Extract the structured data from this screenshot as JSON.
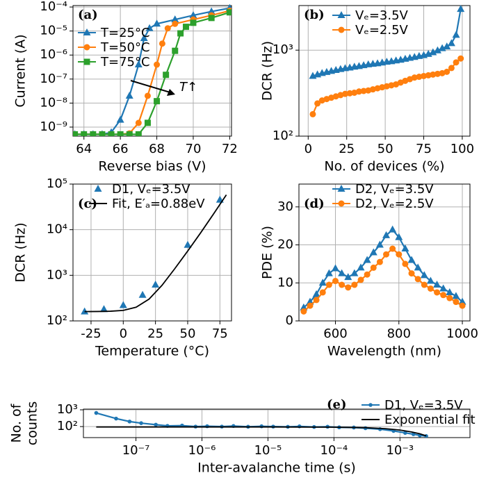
{
  "chart_data": [
    {
      "type": "line",
      "panel_label": "(a)",
      "xlabel": "Reverse bias (V)",
      "ylabel": "Current (A)",
      "annotation": "T↑",
      "xlim": [
        63.4,
        72.1
      ],
      "xticks": [
        64,
        66,
        68,
        70,
        72
      ],
      "yscale": "log",
      "ylim": [
        4.2e-10,
        0.000115
      ],
      "yticks": [
        {
          "value": 1e-09,
          "label": "10⁻⁹"
        },
        {
          "value": 1e-08,
          "label": "10⁻⁸"
        },
        {
          "value": 1e-07,
          "label": "10⁻⁷"
        },
        {
          "value": 1e-06,
          "label": "10⁻⁶"
        },
        {
          "value": 1e-05,
          "label": "10⁻⁵"
        },
        {
          "value": 0.0001,
          "label": "10⁻⁴"
        }
      ],
      "grid": true,
      "legend": "upper left",
      "series": [
        {
          "name": "T=25°C",
          "color": "#1f77b4",
          "marker": "triangle",
          "linestyle": "solid",
          "x": [
            63.5,
            64,
            64.5,
            65,
            65.5,
            66,
            66.5,
            67,
            67.3,
            67.6,
            68,
            69,
            70,
            71,
            72
          ],
          "values": [
            5e-10,
            5e-10,
            5e-10,
            5e-10,
            6e-10,
            2e-09,
            2e-08,
            4e-07,
            5e-06,
            1.3e-05,
            2e-05,
            3e-05,
            4.5e-05,
            6.5e-05,
            9e-05
          ]
        },
        {
          "name": "T=50°C",
          "color": "#ff7f0e",
          "marker": "circle",
          "linestyle": "solid",
          "x": [
            63.5,
            64,
            64.5,
            65,
            65.5,
            66,
            66.5,
            67,
            67.5,
            68,
            68.3,
            68.6,
            69,
            70,
            71,
            72
          ],
          "values": [
            5e-10,
            5e-10,
            5e-10,
            5e-10,
            5e-10,
            5e-10,
            5.5e-10,
            1.5e-09,
            2e-08,
            4e-07,
            3e-06,
            1.3e-05,
            2e-05,
            3e-05,
            4.5e-05,
            7e-05
          ]
        },
        {
          "name": "T=75°C",
          "color": "#2ca02c",
          "marker": "square",
          "linestyle": "solid",
          "x": [
            63.5,
            64,
            64.5,
            65,
            65.5,
            66,
            66.5,
            67,
            67.5,
            68,
            68.5,
            69,
            69.3,
            69.6,
            70,
            71,
            72
          ],
          "values": [
            5e-10,
            5e-10,
            5e-10,
            5e-10,
            5e-10,
            5e-10,
            5e-10,
            5e-10,
            1.5e-09,
            1.2e-08,
            1.5e-07,
            1.5e-06,
            8e-06,
            1.5e-05,
            2.2e-05,
            3.5e-05,
            6e-05
          ]
        }
      ]
    },
    {
      "type": "line",
      "panel_label": "(b)",
      "xlabel": "No. of devices (%)",
      "ylabel": "DCR (Hz)",
      "xlim": [
        -6,
        105
      ],
      "xticks": [
        0,
        25,
        50,
        75,
        100
      ],
      "yscale": "log",
      "ylim": [
        100,
        3300
      ],
      "yticks": [
        {
          "value": 100,
          "label": "10²"
        },
        {
          "value": 1000,
          "label": "10³"
        }
      ],
      "grid": true,
      "legend": "upper left",
      "x": [
        3,
        6,
        9,
        12,
        15,
        18,
        21,
        24,
        27,
        30,
        33,
        36,
        39,
        42,
        45,
        48,
        51,
        54,
        57,
        60,
        63,
        66,
        69,
        72,
        75,
        78,
        81,
        84,
        87,
        90,
        93,
        96,
        99
      ],
      "series": [
        {
          "name": "Vₑ=3.5V",
          "color": "#1f77b4",
          "marker": "triangle",
          "linestyle": "solid",
          "values": [
            500,
            520,
            540,
            555,
            570,
            585,
            600,
            615,
            625,
            640,
            650,
            665,
            680,
            690,
            700,
            715,
            730,
            740,
            755,
            770,
            790,
            810,
            830,
            850,
            870,
            900,
            940,
            990,
            1050,
            1100,
            1200,
            1500,
            3000
          ]
        },
        {
          "name": "Vₑ=2.5V",
          "color": "#ff7f0e",
          "marker": "circle",
          "linestyle": "solid",
          "values": [
            180,
            240,
            260,
            270,
            280,
            290,
            300,
            310,
            315,
            320,
            330,
            335,
            340,
            350,
            360,
            370,
            380,
            390,
            400,
            420,
            440,
            460,
            480,
            490,
            500,
            510,
            520,
            530,
            540,
            560,
            620,
            720,
            800
          ]
        }
      ]
    },
    {
      "type": "line",
      "panel_label": "(c)",
      "xlabel": "Temperature (°C)",
      "ylabel": "DCR (Hz)",
      "xlim": [
        -39,
        84
      ],
      "xticks": [
        -25,
        0,
        25,
        50,
        75
      ],
      "yscale": "log",
      "ylim": [
        100,
        100000
      ],
      "yticks": [
        {
          "value": 100,
          "label": "10²"
        },
        {
          "value": 1000,
          "label": "10³"
        },
        {
          "value": 10000,
          "label": "10⁴"
        },
        {
          "value": 100000,
          "label": "10⁵"
        }
      ],
      "grid": true,
      "legend": "upper left",
      "series": [
        {
          "name": "D1, Vₑ=3.5V",
          "color": "#1f77b4",
          "marker": "triangle",
          "linestyle": "none",
          "x": [
            -30,
            -15,
            0,
            15,
            25,
            50,
            75
          ],
          "values": [
            160,
            180,
            220,
            370,
            620,
            4600,
            45000
          ]
        },
        {
          "name": "Fit, E′ₐ=0.88eV",
          "color": "#000000",
          "marker": "none",
          "linestyle": "solid",
          "x": [
            -30,
            -20,
            -10,
            0,
            10,
            20,
            30,
            40,
            50,
            60,
            70,
            80
          ],
          "values": [
            160,
            161,
            163,
            170,
            200,
            300,
            600,
            1400,
            3400,
            8500,
            22000,
            58000
          ]
        }
      ]
    },
    {
      "type": "line",
      "panel_label": "(d)",
      "xlabel": "Wavelength (nm)",
      "ylabel": "PDE (%)",
      "xlim": [
        485,
        1024
      ],
      "xticks": [
        600,
        800,
        1000
      ],
      "ylim": [
        0,
        36
      ],
      "yticks": [
        0,
        10,
        20,
        30
      ],
      "grid": true,
      "legend": "upper left",
      "x": [
        500,
        520,
        540,
        560,
        580,
        600,
        620,
        640,
        660,
        680,
        700,
        720,
        740,
        760,
        780,
        800,
        820,
        840,
        860,
        880,
        900,
        920,
        940,
        960,
        980,
        1000
      ],
      "series": [
        {
          "name": "D2, Vₑ=3.5V",
          "color": "#1f77b4",
          "marker": "triangle",
          "linestyle": "solid",
          "values": [
            3.5,
            5,
            7,
            10,
            12.5,
            13.8,
            12.5,
            11.5,
            12.5,
            14,
            16,
            18,
            20,
            22.5,
            24,
            22,
            19,
            16,
            14,
            12,
            10.5,
            9.5,
            8.5,
            7.5,
            6.5,
            5
          ]
        },
        {
          "name": "D2, Vₑ=2.5V",
          "color": "#ff7f0e",
          "marker": "circle",
          "linestyle": "solid",
          "values": [
            2.5,
            4,
            5.5,
            7.5,
            9.5,
            10.5,
            9.5,
            8.8,
            9.5,
            10.8,
            12.2,
            14,
            15.5,
            17.5,
            19,
            17.5,
            15,
            12.5,
            11,
            9.5,
            8.5,
            7.5,
            6.8,
            6,
            5,
            4
          ]
        }
      ]
    },
    {
      "type": "line",
      "panel_label": "(e)",
      "xlabel": "Inter-avalanche time (s)",
      "ylabel": [
        "No. of",
        "counts"
      ],
      "xscale": "log",
      "xlim": [
        1.6e-08,
        0.0115
      ],
      "xticks": [
        {
          "value": 1e-07,
          "label": "10⁻⁷"
        },
        {
          "value": 1e-06,
          "label": "10⁻⁶"
        },
        {
          "value": 1e-05,
          "label": "10⁻⁵"
        },
        {
          "value": 0.0001,
          "label": "10⁻⁴"
        },
        {
          "value": 0.001,
          "label": "10⁻³"
        }
      ],
      "yscale": "log",
      "ylim": [
        22,
        1100
      ],
      "yticks": [
        {
          "value": 100,
          "label": "10²"
        },
        {
          "value": 1000,
          "label": "10³"
        }
      ],
      "grid": true,
      "legend": "upper right",
      "series": [
        {
          "name": "D1, Vₑ=3.5V",
          "color": "#1f77b4",
          "marker": "dot",
          "linestyle": "solid",
          "x": [
            2.5e-08,
            5e-08,
            8e-08,
            1.2e-07,
            2e-07,
            3e-07,
            5e-07,
            8e-07,
            1.2e-06,
            2e-06,
            3e-06,
            5e-06,
            8e-06,
            1.2e-05,
            2e-05,
            3e-05,
            5e-05,
            8e-05,
            0.00012,
            0.0002,
            0.0003,
            0.0005,
            0.0008,
            0.0012,
            0.0016,
            0.002,
            0.0025
          ],
          "values": [
            650,
            300,
            200,
            160,
            130,
            110,
            115,
            100,
            105,
            100,
            108,
            98,
            104,
            100,
            97,
            103,
            95,
            98,
            90,
            88,
            80,
            70,
            55,
            42,
            35,
            30,
            27
          ]
        },
        {
          "name": "Exponential fit",
          "color": "#000000",
          "marker": "none",
          "linestyle": "solid",
          "x": [
            2.5e-08,
            1e-06,
            1e-05,
            0.0001,
            0.0003,
            0.0006,
            0.001,
            0.0015,
            0.002,
            0.0025
          ],
          "values": [
            95,
            95,
            94.7,
            92,
            86,
            75,
            62,
            48,
            37,
            28
          ]
        }
      ]
    }
  ]
}
